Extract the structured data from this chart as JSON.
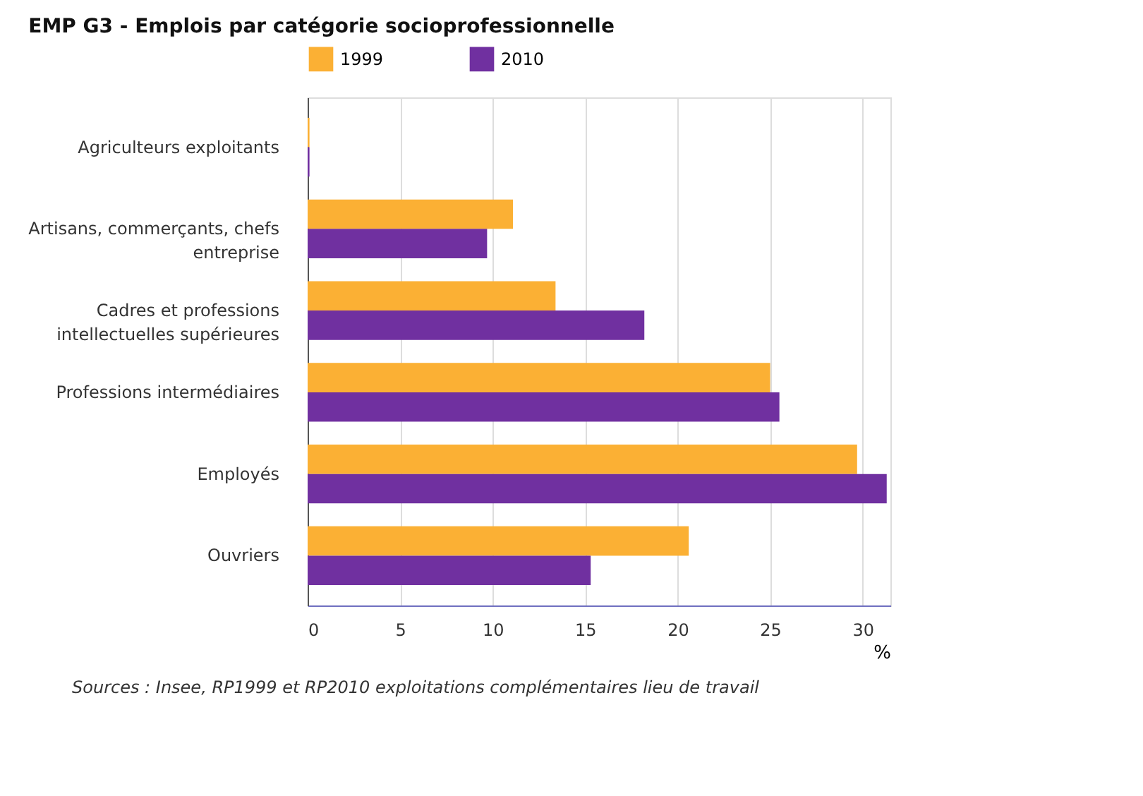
{
  "chart_data": {
    "type": "bar",
    "orientation": "horizontal",
    "title": "EMP G3 - Emplois par catégorie socioprofessionnelle",
    "categories": [
      "Agriculteurs exploitants",
      "Artisans, commerçants, chefs entreprise",
      "Cadres et professions intellectuelles supérieures",
      "Professions intermédiaires",
      "Employés",
      "Ouvriers"
    ],
    "series": [
      {
        "name": "1999",
        "color": "#fbb034",
        "values": [
          0.1,
          11.1,
          13.4,
          25.0,
          29.7,
          20.6
        ]
      },
      {
        "name": "2010",
        "color": "#7030a0",
        "values": [
          0.1,
          9.7,
          18.2,
          25.5,
          31.3,
          15.3
        ]
      }
    ],
    "xlim": [
      0,
      31.5
    ],
    "xticks": [
      0,
      5,
      10,
      15,
      20,
      25,
      30
    ],
    "xlabel": "%",
    "grid": "x",
    "legend": "top",
    "annotations": [
      "Sources : Insee, RP1999 et RP2010 exploitations complémentaires lieu de travail"
    ]
  }
}
